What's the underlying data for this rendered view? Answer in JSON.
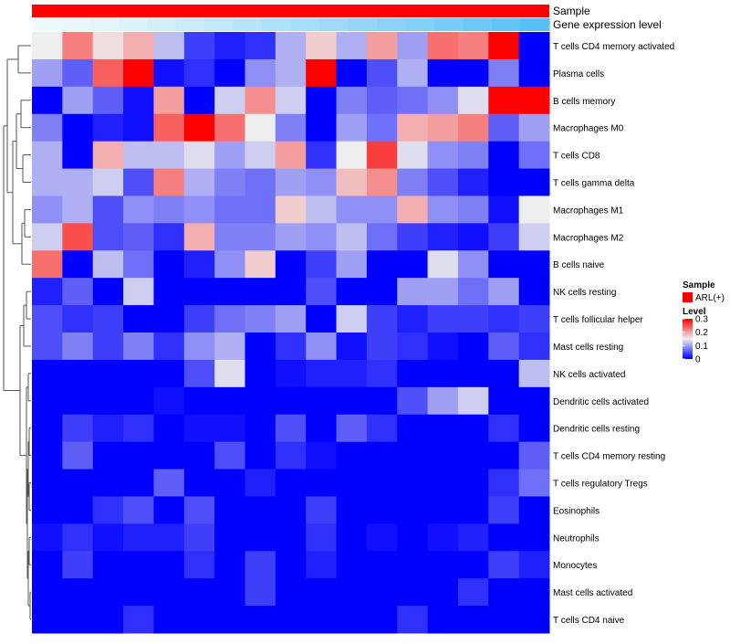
{
  "chart_data": {
    "type": "heatmap",
    "title": "",
    "annotation_tracks": [
      {
        "name": "Sample",
        "color": "#ff0000"
      },
      {
        "name": "Gene expression level",
        "colors": [
          "#eefafe",
          "#eaf8fd",
          "#e4f6fc",
          "#dbf3fc",
          "#d2f0fc",
          "#c9ecfb",
          "#c0e9fb",
          "#b7e5fa",
          "#aee2f9",
          "#a5def8",
          "#9cdaf8",
          "#93d6f7",
          "#8ad3f6",
          "#81d0f6",
          "#78ccf5",
          "#6ec8f4",
          "#63c4f3",
          "#58c0f3"
        ]
      }
    ],
    "rows": [
      "T cells CD4 memory activated",
      "Plasma cells",
      "B cells memory",
      "Macrophages M0",
      "T cells CD8",
      "T cells gamma delta",
      "Macrophages M1",
      "Macrophages M2",
      "B cells naive",
      "NK cells resting",
      "T cells follicular helper",
      "Mast cells resting",
      "NK cells activated",
      "Dendritic cells activated",
      "Dendritic cells resting",
      "T cells CD4 memory resting",
      "T cells regulatory  Tregs",
      "Eosinophils",
      "Neutrophils",
      "Monocytes",
      "Mast cells activated",
      "T cells CD4 naive"
    ],
    "values": [
      [
        0.15,
        0.22,
        0.16,
        0.19,
        0.12,
        0.04,
        0.02,
        0.03,
        0.11,
        0.17,
        0.11,
        0.2,
        0.1,
        0.23,
        0.22,
        0.3,
        0.0
      ],
      [
        0.1,
        0.06,
        0.24,
        0.3,
        0.01,
        0.03,
        0.0,
        0.09,
        0.11,
        0.3,
        0.0,
        0.05,
        0.11,
        0.0,
        0.0,
        0.08,
        0.0
      ],
      [
        0.0,
        0.1,
        0.06,
        0.01,
        0.2,
        0.0,
        0.13,
        0.21,
        0.13,
        0.0,
        0.08,
        0.06,
        0.07,
        0.09,
        0.14,
        0.3,
        0.3
      ],
      [
        0.08,
        0.0,
        0.02,
        0.01,
        0.24,
        0.3,
        0.23,
        0.15,
        0.08,
        0.0,
        0.1,
        0.07,
        0.19,
        0.2,
        0.22,
        0.06,
        0.1
      ],
      [
        0.11,
        0.0,
        0.19,
        0.12,
        0.12,
        0.14,
        0.1,
        0.13,
        0.2,
        0.03,
        0.15,
        0.26,
        0.14,
        0.09,
        0.08,
        0.0,
        0.07
      ],
      [
        0.11,
        0.11,
        0.13,
        0.05,
        0.22,
        0.11,
        0.08,
        0.07,
        0.1,
        0.09,
        0.18,
        0.21,
        0.08,
        0.05,
        0.02,
        0.0,
        0.0
      ],
      [
        0.09,
        0.11,
        0.05,
        0.09,
        0.08,
        0.09,
        0.07,
        0.07,
        0.17,
        0.12,
        0.09,
        0.09,
        0.19,
        0.09,
        0.08,
        0.01,
        0.15
      ],
      [
        0.13,
        0.25,
        0.05,
        0.06,
        0.03,
        0.19,
        0.08,
        0.08,
        0.1,
        0.09,
        0.12,
        0.07,
        0.04,
        0.02,
        0.01,
        0.04,
        0.13
      ],
      [
        0.23,
        0.0,
        0.12,
        0.07,
        0.0,
        0.02,
        0.09,
        0.17,
        0.0,
        0.04,
        0.1,
        0.0,
        0.0,
        0.14,
        0.09,
        0.0,
        0.0
      ],
      [
        0.02,
        0.06,
        0.0,
        0.13,
        0.0,
        0.0,
        0.0,
        0.0,
        0.0,
        0.05,
        0.0,
        0.0,
        0.1,
        0.1,
        0.07,
        0.1,
        0.0
      ],
      [
        0.05,
        0.03,
        0.04,
        0.0,
        0.0,
        0.04,
        0.07,
        0.08,
        0.1,
        0.0,
        0.13,
        0.04,
        0.02,
        0.04,
        0.04,
        0.03,
        0.04
      ],
      [
        0.05,
        0.08,
        0.04,
        0.08,
        0.03,
        0.09,
        0.11,
        0.0,
        0.03,
        0.09,
        0.01,
        0.04,
        0.03,
        0.01,
        0.0,
        0.06,
        0.03
      ],
      [
        0.0,
        0.0,
        0.0,
        0.0,
        0.0,
        0.05,
        0.14,
        0.0,
        0.01,
        0.02,
        0.02,
        0.03,
        0.0,
        0.0,
        0.0,
        0.0,
        0.12
      ],
      [
        0.0,
        0.0,
        0.0,
        0.0,
        0.01,
        0.0,
        0.0,
        0.0,
        0.0,
        0.0,
        0.0,
        0.0,
        0.05,
        0.1,
        0.13,
        0.0,
        0.0
      ],
      [
        0.0,
        0.04,
        0.02,
        0.03,
        0.0,
        0.01,
        0.01,
        0.0,
        0.05,
        0.0,
        0.06,
        0.03,
        0.0,
        0.0,
        0.0,
        0.03,
        0.0
      ],
      [
        0.0,
        0.06,
        0.0,
        0.0,
        0.0,
        0.0,
        0.05,
        0.0,
        0.03,
        0.01,
        0.0,
        0.0,
        0.0,
        0.0,
        0.0,
        0.0,
        0.06
      ],
      [
        0.0,
        0.0,
        0.0,
        0.0,
        0.06,
        0.0,
        0.0,
        0.02,
        0.0,
        0.0,
        0.0,
        0.0,
        0.0,
        0.0,
        0.0,
        0.03,
        0.07
      ],
      [
        0.0,
        0.0,
        0.03,
        0.05,
        0.0,
        0.05,
        0.0,
        0.0,
        0.0,
        0.04,
        0.0,
        0.0,
        0.0,
        0.0,
        0.0,
        0.04,
        0.0
      ],
      [
        0.01,
        0.03,
        0.01,
        0.02,
        0.02,
        0.04,
        0.0,
        0.0,
        0.0,
        0.03,
        0.0,
        0.01,
        0.0,
        0.01,
        0.02,
        0.0,
        0.0
      ],
      [
        0.0,
        0.04,
        0.0,
        0.0,
        0.0,
        0.03,
        0.0,
        0.04,
        0.0,
        0.02,
        0.0,
        0.0,
        0.0,
        0.0,
        0.0,
        0.04,
        0.02
      ],
      [
        0.0,
        0.0,
        0.0,
        0.0,
        0.0,
        0.0,
        0.0,
        0.04,
        0.0,
        0.0,
        0.0,
        0.0,
        0.0,
        0.0,
        0.03,
        0.0,
        0.0
      ],
      [
        0.0,
        0.0,
        0.0,
        0.03,
        0.0,
        0.0,
        0.0,
        0.0,
        0.0,
        0.0,
        0.0,
        0.0,
        0.03,
        0.0,
        0.0,
        0.0,
        0.0
      ]
    ],
    "color_scale": {
      "stops": [
        {
          "value": 0.0,
          "color": "#0000ff"
        },
        {
          "value": 0.15,
          "color": "#eeeeee"
        },
        {
          "value": 0.3,
          "color": "#ff0000"
        }
      ]
    },
    "legend": {
      "position": "right",
      "sample_title": "Sample",
      "sample_items": [
        {
          "label": "ARL(+)",
          "color": "#ff0000"
        }
      ],
      "level_title": "Level",
      "level_ticks": [
        "0.3",
        "0.2",
        "0.1",
        "0"
      ],
      "level_tick_values": [
        0.3,
        0.2,
        0.1,
        0
      ]
    },
    "row_dendrogram": true
  }
}
